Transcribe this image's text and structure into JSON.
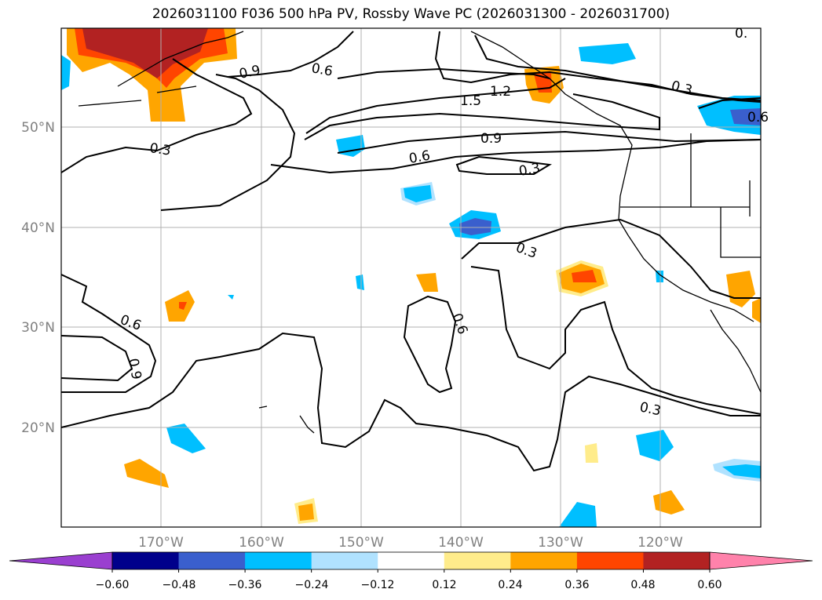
{
  "title": "2026031100 F036 500 hPa PV, Rossby Wave PC (2026031300 - 2026031700)",
  "axes": {
    "lon_labels": [
      "170°W",
      "160°W",
      "150°W",
      "140°W",
      "130°W",
      "120°W"
    ],
    "lat_labels": [
      "50°N",
      "40°N",
      "30°N",
      "20°N"
    ]
  },
  "colorbar": {
    "tick_labels": [
      "−0.60",
      "−0.48",
      "−0.36",
      "−0.24",
      "−0.12",
      "0.12",
      "0.24",
      "0.36",
      "0.48",
      "0.60"
    ],
    "colors": [
      "#9a3fd0",
      "#00008b",
      "#3a5fcd",
      "#00bfff",
      "#b0e2ff",
      "#ffffff",
      "#ffec8b",
      "#ffa500",
      "#ff4500",
      "#b22222",
      "#ff82ab"
    ]
  },
  "contour_labels": [
    {
      "text": "0.6",
      "rot": 10
    },
    {
      "text": "0.9",
      "rot": -12
    },
    {
      "text": "1.2",
      "rot": -3
    },
    {
      "text": "1.5",
      "rot": -5
    },
    {
      "text": "0.9",
      "rot": -5
    },
    {
      "text": "0.6",
      "rot": -10
    },
    {
      "text": "0.3",
      "rot": -10
    },
    {
      "text": "0.3",
      "rot": 8
    },
    {
      "text": "0.3",
      "rot": 15
    },
    {
      "text": "0.6",
      "rot": 0
    },
    {
      "text": "0.3",
      "rot": 20
    },
    {
      "text": "0.6",
      "rot": 20
    },
    {
      "text": "0.9",
      "rot": 80
    },
    {
      "text": "0.6",
      "rot": 70
    },
    {
      "text": "0.3",
      "rot": 12
    },
    {
      "text": "0.6",
      "rot": 0
    },
    {
      "text": "0.",
      "rot": 0
    }
  ]
}
